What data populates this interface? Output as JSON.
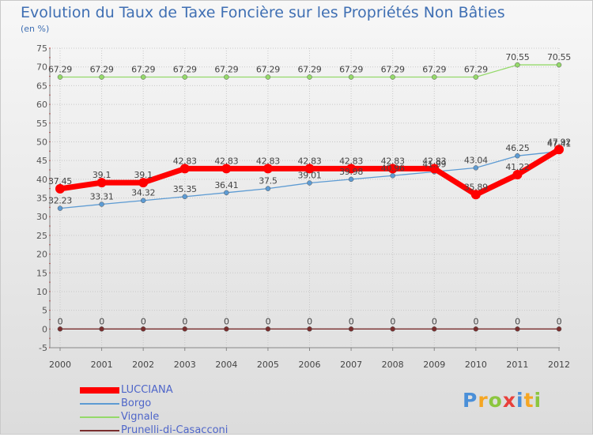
{
  "title": "Evolution du Taux de Taxe Foncière sur les Propriétés Non Bâties",
  "unit": "(en %)",
  "logo": "Proxiti",
  "chart_data": {
    "type": "line",
    "categories": [
      "2000",
      "2001",
      "2002",
      "2003",
      "2004",
      "2005",
      "2006",
      "2007",
      "2008",
      "2009",
      "2010",
      "2011",
      "2012"
    ],
    "ylim": [
      -5,
      75
    ],
    "yticks": [
      -5,
      0,
      5,
      10,
      15,
      20,
      25,
      30,
      35,
      40,
      45,
      50,
      55,
      60,
      65,
      70,
      75
    ],
    "grid": true,
    "legend_position": "bottom-left",
    "series": [
      {
        "name": "LUCCIANA",
        "color": "#ff0000",
        "emphasis": true,
        "values": [
          37.45,
          39.1,
          39.1,
          42.83,
          42.83,
          42.83,
          42.83,
          42.83,
          42.83,
          42.83,
          35.89,
          41.22,
          47.92
        ],
        "labels": [
          "37.45",
          "39.1",
          "39.1",
          "42.83",
          "42.83",
          "42.83",
          "42.83",
          "42.83",
          "42.83",
          "42.83",
          "35.89",
          "41.22",
          "47.92"
        ]
      },
      {
        "name": "Borgo",
        "color": "#5d9bd3",
        "values": [
          32.23,
          33.31,
          34.32,
          35.35,
          36.41,
          37.5,
          39.01,
          39.98,
          40.96,
          41.99,
          43.04,
          46.25,
          47.41
        ],
        "labels": [
          "32.23",
          "33.31",
          "34.32",
          "35.35",
          "36.41",
          "37.5",
          "39.01",
          "39.98",
          "40.96",
          "41.99",
          "43.04",
          "46.25",
          "47.41"
        ]
      },
      {
        "name": "Vignale",
        "color": "#94d96a",
        "values": [
          67.29,
          67.29,
          67.29,
          67.29,
          67.29,
          67.29,
          67.29,
          67.29,
          67.29,
          67.29,
          67.29,
          70.55,
          70.55
        ],
        "labels": [
          "67.29",
          "67.29",
          "67.29",
          "67.29",
          "67.29",
          "67.29",
          "67.29",
          "67.29",
          "67.29",
          "67.29",
          "67.29",
          "70.55",
          "70.55"
        ]
      },
      {
        "name": "Prunelli-di-Casacconi",
        "color": "#7a2e2e",
        "values": [
          0,
          0,
          0,
          0,
          0,
          0,
          0,
          0,
          0,
          0,
          0,
          0,
          0
        ],
        "labels": [
          "0",
          "0",
          "0",
          "0",
          "0",
          "0",
          "0",
          "0",
          "0",
          "0",
          "0",
          "0",
          "0"
        ]
      }
    ]
  }
}
